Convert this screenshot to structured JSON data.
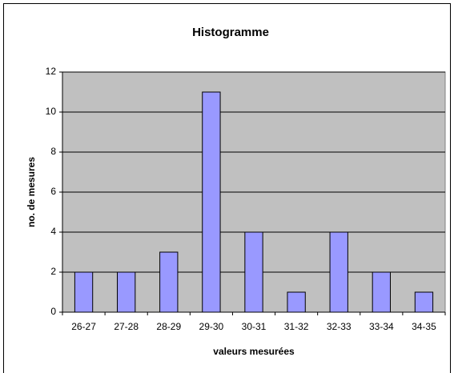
{
  "chart_data": {
    "type": "bar",
    "title": "Histogramme",
    "x_label": "valeurs mesurées",
    "y_label": "no. de mesures",
    "categories": [
      "26-27",
      "27-28",
      "28-29",
      "29-30",
      "30-31",
      "31-32",
      "32-33",
      "33-34",
      "34-35"
    ],
    "values": [
      2,
      2,
      3,
      11,
      4,
      1,
      4,
      2,
      1
    ],
    "color": "#9999ff",
    "plot_background": "#c0c0c0",
    "ylim": [
      0,
      12
    ],
    "yticks": [
      0,
      2,
      4,
      6,
      8,
      10,
      12
    ],
    "grid": true
  }
}
